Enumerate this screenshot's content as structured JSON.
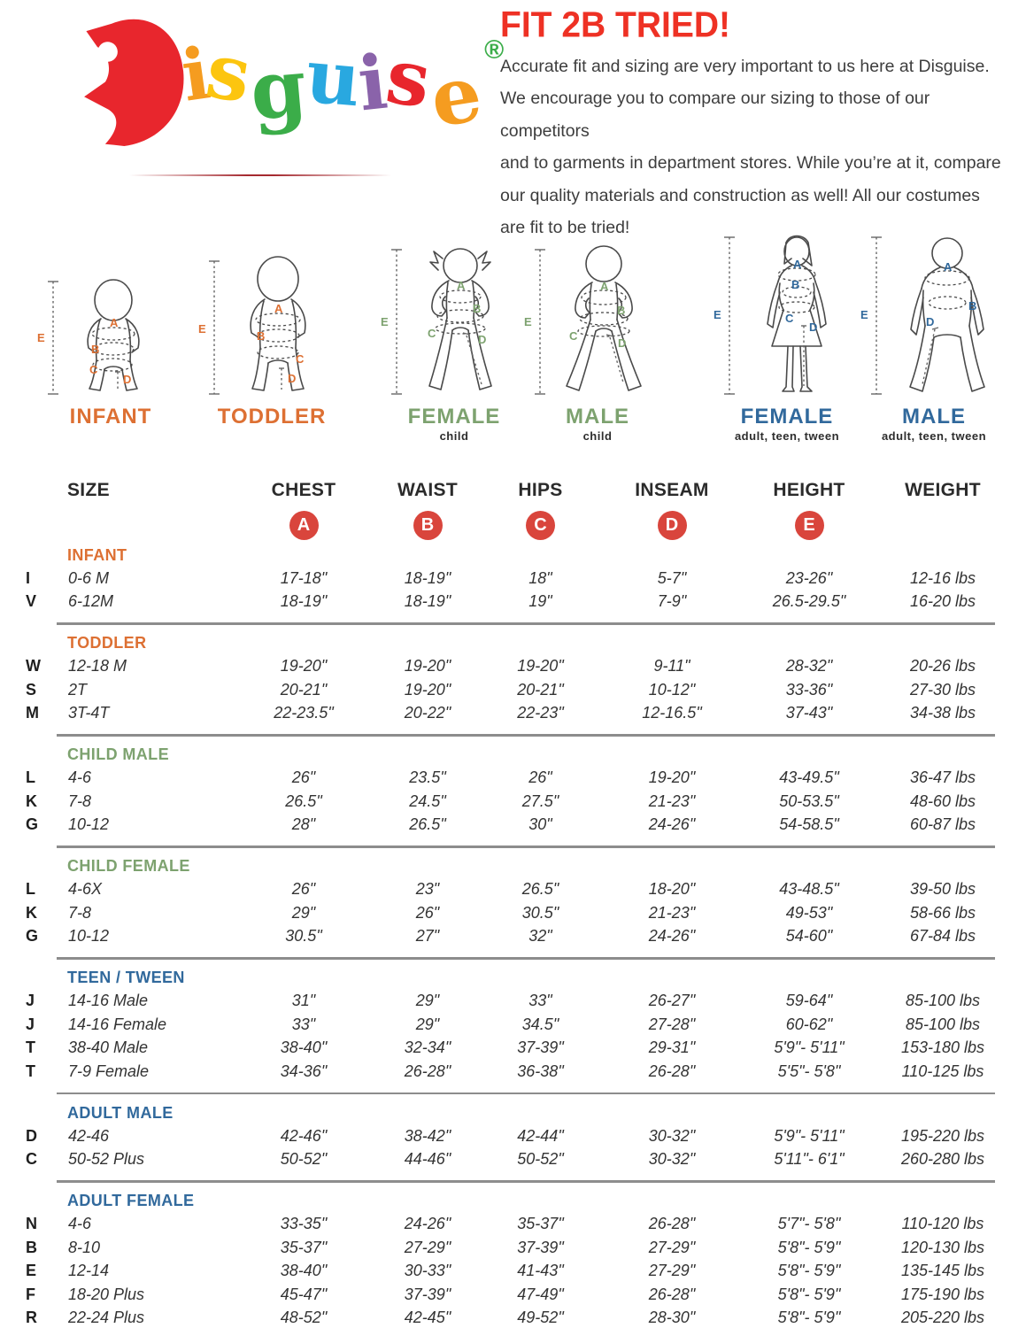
{
  "logo": {
    "brand": "Disguise",
    "registered": "®",
    "registered_color": "#3bad49",
    "letters": [
      {
        "char": "D",
        "color": "#e8262d"
      },
      {
        "char": "i",
        "color": "#f59c20"
      },
      {
        "char": "s",
        "color": "#fcc50f"
      },
      {
        "char": "g",
        "color": "#3bad49"
      },
      {
        "char": "u",
        "color": "#29a8e0"
      },
      {
        "char": "i",
        "color": "#8a63aa"
      },
      {
        "char": "s",
        "color": "#e8262d"
      },
      {
        "char": "e",
        "color": "#f59c20"
      }
    ]
  },
  "header": {
    "title": "FIT 2B TRIED!",
    "title_color": "#ee3124",
    "paragraph_lines": [
      "Accurate fit and sizing are very important to us here at Disguise.",
      "We encourage you to compare our sizing to those of our competitors",
      "and to garments in department stores. While you’re at it, compare",
      "our quality materials and construction as well! All our costumes",
      "are fit to be tried!"
    ]
  },
  "figures": {
    "measure_letters": [
      "A",
      "B",
      "C",
      "D",
      "E"
    ],
    "items": [
      {
        "label": "INFANT",
        "sublabel": "",
        "color": "#dd7033"
      },
      {
        "label": "TODDLER",
        "sublabel": "",
        "color": "#dd7033"
      },
      {
        "label": "FEMALE",
        "sublabel": "child",
        "color": "#7da26f"
      },
      {
        "label": "MALE",
        "sublabel": "child",
        "color": "#7da26f"
      },
      {
        "label": "FEMALE",
        "sublabel": "adult, teen, tween",
        "color": "#31699c"
      },
      {
        "label": "MALE",
        "sublabel": "adult, teen, tween",
        "color": "#31699c"
      }
    ]
  },
  "table": {
    "columns": [
      "SIZE",
      "CHEST",
      "WAIST",
      "HIPS",
      "INSEAM",
      "HEIGHT",
      "WEIGHT"
    ],
    "badge_letters": [
      "A",
      "B",
      "C",
      "D",
      "E"
    ],
    "badge_color": "#d9453c",
    "sections": [
      {
        "heading": "INFANT",
        "heading_color": "#dd7033",
        "rows": [
          {
            "letter": "I",
            "size": "0-6 M",
            "chest": "17-18\"",
            "waist": "18-19\"",
            "hips": "18\"",
            "inseam": "5-7\"",
            "height": "23-26\"",
            "weight": "12-16 lbs"
          },
          {
            "letter": "V",
            "size": "6-12M",
            "chest": "18-19\"",
            "waist": "18-19\"",
            "hips": "19\"",
            "inseam": "7-9\"",
            "height": "26.5-29.5\"",
            "weight": "16-20 lbs"
          }
        ]
      },
      {
        "heading": "TODDLER",
        "heading_color": "#dd7033",
        "rows": [
          {
            "letter": "W",
            "size": "12-18 M",
            "chest": "19-20\"",
            "waist": "19-20\"",
            "hips": "19-20\"",
            "inseam": "9-11\"",
            "height": "28-32\"",
            "weight": "20-26 lbs"
          },
          {
            "letter": "S",
            "size": "2T",
            "chest": "20-21\"",
            "waist": "19-20\"",
            "hips": "20-21\"",
            "inseam": "10-12\"",
            "height": "33-36\"",
            "weight": "27-30 lbs"
          },
          {
            "letter": "M",
            "size": "3T-4T",
            "chest": "22-23.5\"",
            "waist": "20-22\"",
            "hips": "22-23\"",
            "inseam": "12-16.5\"",
            "height": "37-43\"",
            "weight": "34-38 lbs"
          }
        ]
      },
      {
        "heading": "CHILD MALE",
        "heading_color": "#7da26f",
        "rows": [
          {
            "letter": "L",
            "size": "4-6",
            "chest": "26\"",
            "waist": "23.5\"",
            "hips": "26\"",
            "inseam": "19-20\"",
            "height": "43-49.5\"",
            "weight": "36-47 lbs"
          },
          {
            "letter": "K",
            "size": "7-8",
            "chest": "26.5\"",
            "waist": "24.5\"",
            "hips": "27.5\"",
            "inseam": "21-23\"",
            "height": "50-53.5\"",
            "weight": "48-60 lbs"
          },
          {
            "letter": "G",
            "size": "10-12",
            "chest": "28\"",
            "waist": "26.5\"",
            "hips": "30\"",
            "inseam": "24-26\"",
            "height": "54-58.5\"",
            "weight": "60-87 lbs"
          }
        ]
      },
      {
        "heading": "CHILD FEMALE",
        "heading_color": "#7da26f",
        "rows": [
          {
            "letter": "L",
            "size": "4-6X",
            "chest": "26\"",
            "waist": "23\"",
            "hips": "26.5\"",
            "inseam": "18-20\"",
            "height": "43-48.5\"",
            "weight": "39-50 lbs"
          },
          {
            "letter": "K",
            "size": "7-8",
            "chest": "29\"",
            "waist": "26\"",
            "hips": "30.5\"",
            "inseam": "21-23\"",
            "height": "49-53\"",
            "weight": "58-66 lbs"
          },
          {
            "letter": "G",
            "size": "10-12",
            "chest": "30.5\"",
            "waist": "27\"",
            "hips": "32\"",
            "inseam": "24-26\"",
            "height": "54-60\"",
            "weight": "67-84 lbs"
          }
        ]
      },
      {
        "heading": "TEEN / TWEEN",
        "heading_color": "#31699c",
        "rows": [
          {
            "letter": "J",
            "size": "14-16 Male",
            "chest": "31\"",
            "waist": "29\"",
            "hips": "33\"",
            "inseam": "26-27\"",
            "height": "59-64\"",
            "weight": "85-100 lbs"
          },
          {
            "letter": "J",
            "size": "14-16 Female",
            "chest": "33\"",
            "waist": "29\"",
            "hips": "34.5\"",
            "inseam": "27-28\"",
            "height": "60-62\"",
            "weight": "85-100 lbs"
          },
          {
            "letter": "T",
            "size": "38-40 Male",
            "chest": "38-40\"",
            "waist": "32-34\"",
            "hips": "37-39\"",
            "inseam": "29-31\"",
            "height": "5'9\"- 5'11\"",
            "weight": "153-180 lbs"
          },
          {
            "letter": "T",
            "size": "7-9 Female",
            "chest": "34-36\"",
            "waist": "26-28\"",
            "hips": "36-38\"",
            "inseam": "26-28\"",
            "height": "5'5\"- 5'8\"",
            "weight": "110-125 lbs"
          }
        ]
      },
      {
        "heading": "ADULT MALE",
        "heading_color": "#31699c",
        "rows": [
          {
            "letter": "D",
            "size": "42-46",
            "chest": "42-46\"",
            "waist": "38-42\"",
            "hips": "42-44\"",
            "inseam": "30-32\"",
            "height": "5'9\"- 5'11\"",
            "weight": "195-220 lbs"
          },
          {
            "letter": "C",
            "size": "50-52 Plus",
            "chest": "50-52\"",
            "waist": "44-46\"",
            "hips": "50-52\"",
            "inseam": "30-32\"",
            "height": "5'11\"- 6'1\"",
            "weight": "260-280 lbs"
          }
        ]
      },
      {
        "heading": "ADULT FEMALE",
        "heading_color": "#31699c",
        "rows": [
          {
            "letter": "N",
            "size": "4-6",
            "chest": "33-35\"",
            "waist": "24-26\"",
            "hips": "35-37\"",
            "inseam": "26-28\"",
            "height": "5'7\"- 5'8\"",
            "weight": "110-120 lbs"
          },
          {
            "letter": "B",
            "size": "8-10",
            "chest": "35-37\"",
            "waist": "27-29\"",
            "hips": "37-39\"",
            "inseam": "27-29\"",
            "height": "5'8\"- 5'9\"",
            "weight": "120-130 lbs"
          },
          {
            "letter": "E",
            "size": "12-14",
            "chest": "38-40\"",
            "waist": "30-33\"",
            "hips": "41-43\"",
            "inseam": "27-29\"",
            "height": "5'8\"- 5'9\"",
            "weight": "135-145 lbs"
          },
          {
            "letter": "F",
            "size": "18-20 Plus",
            "chest": "45-47\"",
            "waist": "37-39\"",
            "hips": "47-49\"",
            "inseam": "26-28\"",
            "height": "5'8\"- 5'9\"",
            "weight": "175-190 lbs"
          },
          {
            "letter": "R",
            "size": "22-24 Plus",
            "chest": "48-52\"",
            "waist": "42-45\"",
            "hips": "49-52\"",
            "inseam": "28-30\"",
            "height": "5'8\"- 5'9\"",
            "weight": "205-220 lbs"
          }
        ]
      }
    ]
  }
}
